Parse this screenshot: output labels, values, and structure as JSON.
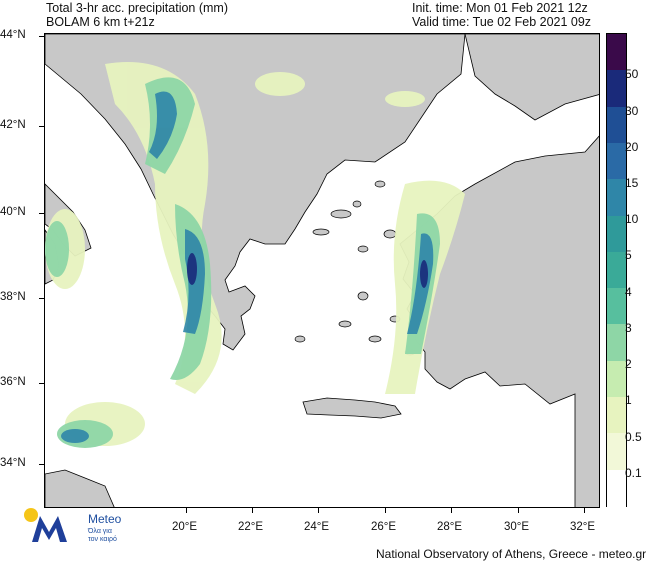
{
  "header": {
    "title_left": "Total 3-hr acc. precipitation (mm)",
    "model_info": "BOLAM 6 km t+21z",
    "init_time": "Init. time: Mon 01 Feb 2021 12z",
    "valid_time": "Valid time: Tue 02 Feb 2021 09z"
  },
  "axes": {
    "lat_labels": [
      "44°N",
      "42°N",
      "40°N",
      "38°N",
      "36°N",
      "34°N"
    ],
    "lon_labels": [
      "20°E",
      "22°E",
      "24°E",
      "26°E",
      "28°E",
      "30°E",
      "32°E"
    ]
  },
  "colorbar": {
    "labels": [
      "50",
      "30",
      "20",
      "15",
      "10",
      "5",
      "4",
      "3",
      "2",
      "1",
      "0.5",
      "0.1"
    ],
    "colors": [
      "#3a0a4a",
      "#1a2a7a",
      "#1f4f95",
      "#2a6aa6",
      "#2f86a8",
      "#2f9a9a",
      "#3aaa98",
      "#57bf9e",
      "#8ed6a6",
      "#c6ecb0",
      "#e7f3bf",
      "#f2f8d8",
      "#ffffff"
    ]
  },
  "palette": {
    "land": "#c8c8c8",
    "sea": "#ffffff",
    "precip_light": "#e7f3bf",
    "precip_mid": "#8ed6a6",
    "precip_heavy": "#2f86a8",
    "precip_max": "#1a2a7a"
  },
  "logo": {
    "brand": "Meteo",
    "tagline_1": "Όλα για",
    "tagline_2": "τον καιρό"
  },
  "footer": {
    "credit": "National Observatory of Athens, Greece - meteo.gr"
  }
}
